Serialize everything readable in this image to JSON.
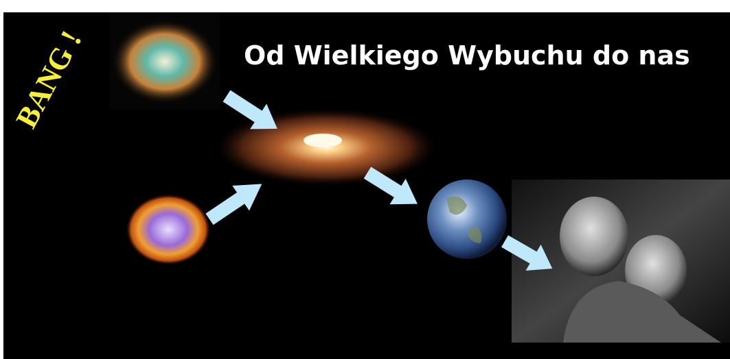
{
  "title": "Od Wielkiego Wybuchu do nas",
  "exclamation": "BANG !"
}
